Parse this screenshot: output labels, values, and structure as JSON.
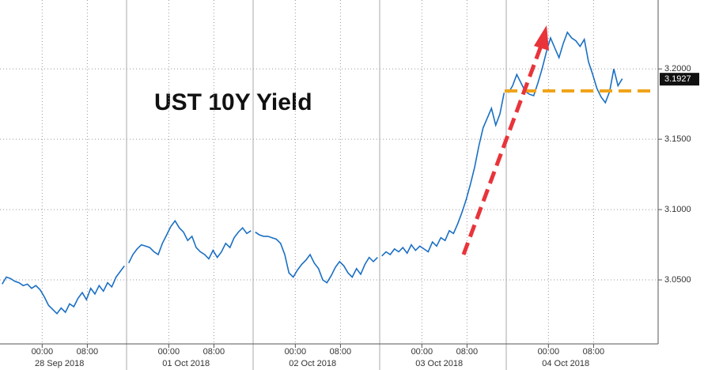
{
  "chart_data": {
    "type": "line",
    "title": "UST 10Y Yield",
    "color": "#1a6fc4",
    "ylim": [
      3.0045,
      3.249
    ],
    "yticks": [
      {
        "value": 3.05,
        "label": "3.0500"
      },
      {
        "value": 3.1,
        "label": "3.1000"
      },
      {
        "value": 3.15,
        "label": "3.1500"
      },
      {
        "value": 3.2,
        "label": "3.2000"
      }
    ],
    "last_value": 3.1927,
    "grid": true,
    "days": [
      {
        "label": "28 Sep 2018",
        "ticks": [
          "00:00",
          "08:00"
        ],
        "values": [
          3.047,
          3.052,
          3.051,
          3.049,
          3.048,
          3.046,
          3.047,
          3.044,
          3.046,
          3.043,
          3.038,
          3.032,
          3.029,
          3.026,
          3.03,
          3.027,
          3.033,
          3.031,
          3.037,
          3.041,
          3.036,
          3.044,
          3.04,
          3.046,
          3.042,
          3.048,
          3.045,
          3.052,
          3.056,
          3.06
        ]
      },
      {
        "label": "01 Oct 2018",
        "ticks": [
          "00:00",
          "08:00"
        ],
        "values": [
          3.062,
          3.068,
          3.072,
          3.075,
          3.074,
          3.073,
          3.07,
          3.068,
          3.076,
          3.082,
          3.088,
          3.092,
          3.087,
          3.084,
          3.078,
          3.081,
          3.073,
          3.07,
          3.068,
          3.065,
          3.071,
          3.066,
          3.07,
          3.076,
          3.073,
          3.08,
          3.084,
          3.087,
          3.083,
          3.085
        ]
      },
      {
        "label": "02 Oct 2018",
        "ticks": [
          "00:00",
          "08:00"
        ],
        "values": [
          3.084,
          3.082,
          3.081,
          3.081,
          3.08,
          3.079,
          3.076,
          3.068,
          3.055,
          3.052,
          3.057,
          3.061,
          3.064,
          3.068,
          3.062,
          3.058,
          3.05,
          3.048,
          3.053,
          3.059,
          3.063,
          3.06,
          3.055,
          3.052,
          3.058,
          3.054,
          3.061,
          3.066,
          3.063,
          3.066
        ]
      },
      {
        "label": "03 Oct 2018",
        "ticks": [
          "00:00",
          "08:00"
        ],
        "values": [
          3.067,
          3.07,
          3.068,
          3.072,
          3.07,
          3.073,
          3.069,
          3.075,
          3.071,
          3.074,
          3.072,
          3.07,
          3.077,
          3.074,
          3.08,
          3.078,
          3.085,
          3.083,
          3.09,
          3.098,
          3.107,
          3.118,
          3.13,
          3.145,
          3.158,
          3.165,
          3.172,
          3.16,
          3.168,
          3.183
        ]
      },
      {
        "label": "04 Oct 2018",
        "ticks": [
          "00:00",
          "08:00"
        ],
        "values": [
          3.183,
          3.188,
          3.196,
          3.19,
          3.184,
          3.182,
          3.181,
          3.19,
          3.2,
          3.212,
          3.222,
          3.215,
          3.208,
          3.218,
          3.226,
          3.222,
          3.22,
          3.216,
          3.221,
          3.205,
          3.196,
          3.186,
          3.18,
          3.176,
          3.184,
          3.2,
          3.188,
          3.193
        ]
      }
    ]
  }
}
